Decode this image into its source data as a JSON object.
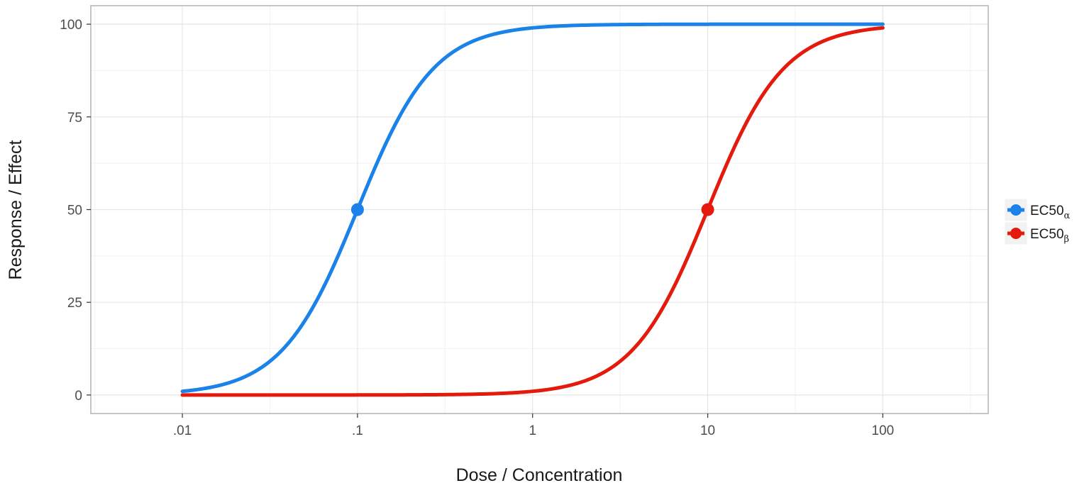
{
  "chart_data": {
    "type": "line",
    "xlabel": "Dose / Concentration",
    "ylabel": "Response / Effect",
    "x_scale": "log10",
    "xlim": [
      0.003,
      400
    ],
    "ylim": [
      -5,
      105
    ],
    "x_ticks": [
      {
        "value": 0.01,
        "label": ".01"
      },
      {
        "value": 0.1,
        "label": ".1"
      },
      {
        "value": 1,
        "label": "1"
      },
      {
        "value": 10,
        "label": "10"
      },
      {
        "value": 100,
        "label": "100"
      }
    ],
    "y_ticks": [
      {
        "value": 0,
        "label": "0"
      },
      {
        "value": 25,
        "label": "25"
      },
      {
        "value": 50,
        "label": "50"
      },
      {
        "value": 75,
        "label": "75"
      },
      {
        "value": 100,
        "label": "100"
      }
    ],
    "grid": true,
    "legend_position": "right",
    "series": [
      {
        "name": "EC50",
        "subscript": "α",
        "color": "#1a82e8",
        "ec50": 0.1,
        "hill": 2,
        "x": [
          0.01,
          0.02,
          0.03,
          0.05,
          0.07,
          0.1,
          0.15,
          0.2,
          0.3,
          0.5,
          1,
          2,
          5,
          10,
          100
        ],
        "y": [
          1.0,
          3.8,
          8.3,
          20,
          32.9,
          50,
          69.2,
          80,
          90,
          96.2,
          99,
          99.8,
          100,
          100,
          100
        ],
        "marker": {
          "x": 0.1,
          "y": 50
        }
      },
      {
        "name": "EC50",
        "subscript": "β",
        "color": "#e41a0c",
        "ec50": 10,
        "hill": 2,
        "x": [
          0.01,
          0.1,
          0.5,
          1,
          2,
          3,
          5,
          7,
          10,
          15,
          20,
          30,
          50,
          100
        ],
        "y": [
          0,
          0,
          0.2,
          1.0,
          3.8,
          8.3,
          20,
          32.9,
          50,
          69.2,
          80,
          90,
          96.2,
          99
        ],
        "marker": {
          "x": 10,
          "y": 50
        }
      }
    ]
  }
}
